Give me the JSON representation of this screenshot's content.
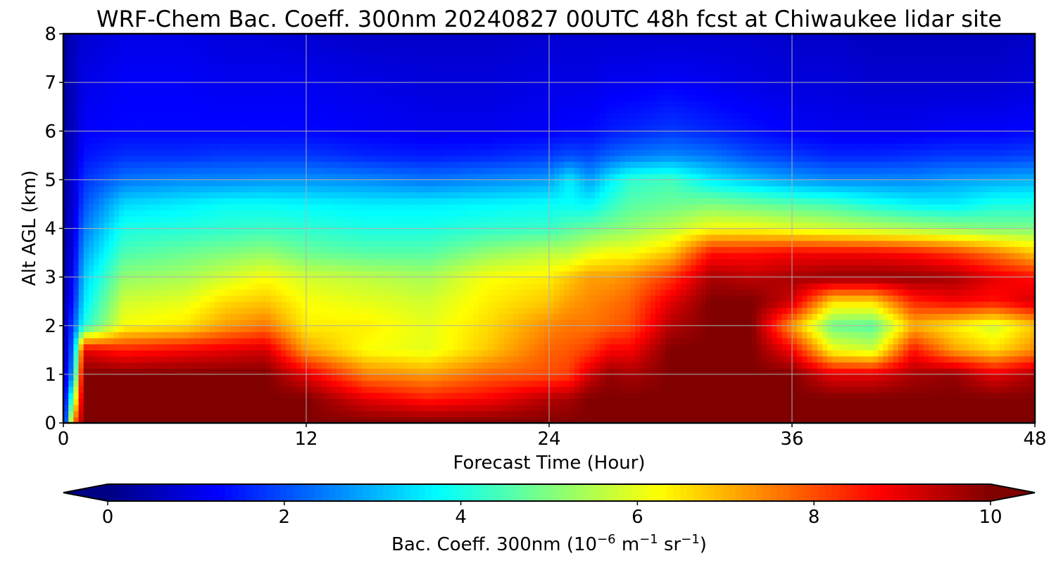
{
  "chart_data": {
    "type": "heatmap",
    "title": "WRF-Chem Bac. Coeff. 300nm  20240827 00UTC 48h fcst at Chiwaukee lidar site",
    "xlabel": "Forecast Time (Hour)",
    "ylabel": "Alt AGL (km)",
    "xlim": [
      0,
      48
    ],
    "ylim": [
      0,
      8
    ],
    "x_ticks": [
      0,
      12,
      24,
      36,
      48
    ],
    "y_ticks": [
      0,
      1,
      2,
      3,
      4,
      5,
      6,
      7,
      8
    ],
    "grid": true,
    "colormap": "jet",
    "colorbar": {
      "label_main": "Bac. Coeff. 300nm  (10",
      "label_exp1": "−6",
      "label_mid": " m",
      "label_exp2": "−1",
      "label_sr": " sr",
      "label_exp3": "−1",
      "label_end": ")",
      "ticks": [
        0,
        2,
        4,
        6,
        8,
        10
      ],
      "range": [
        0,
        10
      ],
      "extend": "both",
      "orientation": "horizontal"
    },
    "x_hours": [
      0,
      0.5,
      1,
      3,
      6,
      8,
      10,
      12,
      15,
      18,
      21,
      24,
      25,
      26,
      27,
      28,
      30,
      32,
      34,
      36,
      38,
      40,
      42,
      44,
      46,
      48
    ],
    "z_km": [
      0,
      0.5,
      1,
      1.5,
      2,
      2.5,
      3,
      3.5,
      4,
      4.5,
      5,
      5.5,
      6,
      7,
      8
    ],
    "values_by_time": [
      [
        0.5,
        0.5,
        0.5,
        0.4,
        0.4,
        0.4,
        0.3,
        0.3,
        0.3,
        0.3,
        0.3,
        0.3,
        0.3,
        0.3,
        0.3
      ],
      [
        7.5,
        5.0,
        3.0,
        2.5,
        2.0,
        1.5,
        1.2,
        1.0,
        0.9,
        0.8,
        0.8,
        0.7,
        0.6,
        0.6,
        0.6
      ],
      [
        10.0,
        10.0,
        10.0,
        9.0,
        4.0,
        3.5,
        3.2,
        2.8,
        2.4,
        2.0,
        1.7,
        1.4,
        1.2,
        1.0,
        0.8
      ],
      [
        10.0,
        10.0,
        10.0,
        8.5,
        6.2,
        5.8,
        5.2,
        4.5,
        4.0,
        3.4,
        2.4,
        1.7,
        1.3,
        1.2,
        1.0
      ],
      [
        10.0,
        10.0,
        10.0,
        8.8,
        6.5,
        6.0,
        5.4,
        4.8,
        4.1,
        3.6,
        2.6,
        1.7,
        1.3,
        1.2,
        1.0
      ],
      [
        10.0,
        10.0,
        10.0,
        9.0,
        7.2,
        6.6,
        5.8,
        5.0,
        4.2,
        3.8,
        2.6,
        1.8,
        1.3,
        1.1,
        0.9
      ],
      [
        10.0,
        10.0,
        10.0,
        9.2,
        7.6,
        6.8,
        6.2,
        5.2,
        4.3,
        3.8,
        2.7,
        1.8,
        1.3,
        1.1,
        0.9
      ],
      [
        10.0,
        10.0,
        9.0,
        7.2,
        6.4,
        6.2,
        5.8,
        4.8,
        4.2,
        3.7,
        2.7,
        1.8,
        1.3,
        1.1,
        0.8
      ],
      [
        10.0,
        9.0,
        7.5,
        6.2,
        6.4,
        6.0,
        5.6,
        4.6,
        4.0,
        3.6,
        2.6,
        1.6,
        1.2,
        1.0,
        0.7
      ],
      [
        10.0,
        8.5,
        7.2,
        6.0,
        6.0,
        5.8,
        5.4,
        4.6,
        4.0,
        3.6,
        2.4,
        1.5,
        1.1,
        0.9,
        0.7
      ],
      [
        10.0,
        8.8,
        7.8,
        6.8,
        6.6,
        6.4,
        6.2,
        5.2,
        4.2,
        3.7,
        2.6,
        1.6,
        1.1,
        0.9,
        0.7
      ],
      [
        10.0,
        9.5,
        8.0,
        7.8,
        7.4,
        6.8,
        6.4,
        5.6,
        4.3,
        3.8,
        2.8,
        1.8,
        1.2,
        1.0,
        0.8
      ],
      [
        10.0,
        9.6,
        8.2,
        7.9,
        7.6,
        7.2,
        6.8,
        5.6,
        4.6,
        3.8,
        3.6,
        2.0,
        1.3,
        1.0,
        0.8
      ],
      [
        10.0,
        10.0,
        9.2,
        8.2,
        7.6,
        7.4,
        7.2,
        6.0,
        4.8,
        3.7,
        2.8,
        1.9,
        1.3,
        1.0,
        0.8
      ],
      [
        10.0,
        10.0,
        9.8,
        8.8,
        7.8,
        7.6,
        7.2,
        6.2,
        5.0,
        4.2,
        3.6,
        2.2,
        1.5,
        1.1,
        0.8
      ],
      [
        10.0,
        10.0,
        9.6,
        8.8,
        8.0,
        7.8,
        7.4,
        6.2,
        5.2,
        4.6,
        4.2,
        2.4,
        1.6,
        1.1,
        0.8
      ],
      [
        10.0,
        10.0,
        10.0,
        10.0,
        9.5,
        9.0,
        8.2,
        6.8,
        5.6,
        4.8,
        4.4,
        2.6,
        1.8,
        1.2,
        0.8
      ],
      [
        10.0,
        10.0,
        10.0,
        10.0,
        10.0,
        10.0,
        9.6,
        8.6,
        6.2,
        5.0,
        3.6,
        2.4,
        1.6,
        1.1,
        0.8
      ],
      [
        10.0,
        10.0,
        10.0,
        10.0,
        10.0,
        10.0,
        9.4,
        8.6,
        6.2,
        4.8,
        3.2,
        2.0,
        1.4,
        1.0,
        0.8
      ],
      [
        10.0,
        10.0,
        10.0,
        8.8,
        7.2,
        9.2,
        9.6,
        8.8,
        6.0,
        4.6,
        2.8,
        1.8,
        1.2,
        0.9,
        0.7
      ],
      [
        10.0,
        10.0,
        9.0,
        6.2,
        4.8,
        6.6,
        9.8,
        8.8,
        5.8,
        4.4,
        2.6,
        1.6,
        1.1,
        0.9,
        0.7
      ],
      [
        10.0,
        10.0,
        9.0,
        5.8,
        4.6,
        6.6,
        9.8,
        8.8,
        5.6,
        4.0,
        2.6,
        1.6,
        1.1,
        0.8,
        0.6
      ],
      [
        10.0,
        10.0,
        9.6,
        8.6,
        7.0,
        8.4,
        9.8,
        8.6,
        5.4,
        3.7,
        2.6,
        1.7,
        1.1,
        0.8,
        0.6
      ],
      [
        10.0,
        10.0,
        9.8,
        7.2,
        6.4,
        8.8,
        9.6,
        8.2,
        5.2,
        3.6,
        2.8,
        1.8,
        1.2,
        0.8,
        0.6
      ],
      [
        10.0,
        10.0,
        9.0,
        6.6,
        5.8,
        8.6,
        9.0,
        7.6,
        5.0,
        4.0,
        2.9,
        1.8,
        1.2,
        0.8,
        0.6
      ],
      [
        10.0,
        10.0,
        9.6,
        7.4,
        6.8,
        9.2,
        8.6,
        6.8,
        5.0,
        4.0,
        3.0,
        1.9,
        1.3,
        0.9,
        0.7
      ]
    ]
  }
}
